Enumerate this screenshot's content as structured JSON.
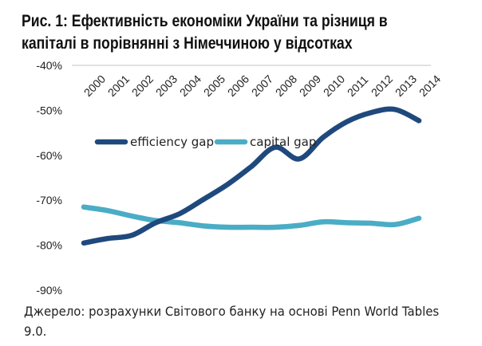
{
  "title_lines": [
    "Рис. 1: Ефективність економіки України та різниця в",
    "капіталі в порівнянні з Німеччиною у відсотках"
  ],
  "source_lines": [
    "Джерело: розрахунки Світового банку на основі Penn World Tables",
    "9.0."
  ],
  "chart_data": {
    "type": "line",
    "title": "Рис. 1: Ефективність економіки України та різниця в капіталі в порівнянні з Німеччиною у відсотках",
    "xlabel": "",
    "ylabel": "",
    "x": [
      "2000",
      "2001",
      "2002",
      "2003",
      "2004",
      "2005",
      "2006",
      "2007",
      "2008",
      "2009",
      "2010",
      "2011",
      "2012",
      "2013",
      "2014"
    ],
    "ylim": [
      -90,
      -40
    ],
    "yticks": [
      "-40%",
      "-50%",
      "-60%",
      "-70%",
      "-80%",
      "-90%"
    ],
    "ytick_values": [
      -40,
      -50,
      -60,
      -70,
      -80,
      -90
    ],
    "grid": "top line at -40% only",
    "legend": "center-left, inside plot",
    "x_axis_position": "top, rotated labels",
    "series": [
      {
        "name": "efficiency gap",
        "color": "#1f497d",
        "values": [
          -79.5,
          -78.5,
          -77.8,
          -75.0,
          -73.0,
          -69.8,
          -66.5,
          -62.5,
          -58.2,
          -60.8,
          -56.0,
          -52.5,
          -50.5,
          -49.8,
          -52.3
        ]
      },
      {
        "name": "capital gap",
        "color": "#4bacc6",
        "values": [
          -71.5,
          -72.3,
          -73.5,
          -74.5,
          -75.0,
          -75.7,
          -76.0,
          -76.0,
          -76.0,
          -75.6,
          -74.8,
          -75.0,
          -75.1,
          -75.4,
          -74.0
        ]
      }
    ]
  }
}
